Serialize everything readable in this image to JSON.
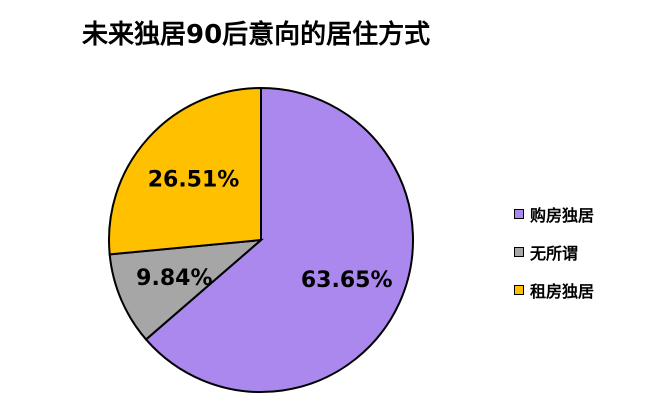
{
  "chart_data": {
    "type": "pie",
    "title": "未来独居90后意向的居住方式",
    "categories": [
      "购房独居",
      "无所谓",
      "租房独居"
    ],
    "values": [
      63.65,
      9.84,
      26.51
    ],
    "labels": [
      "63.65%",
      "9.84%",
      "26.51%"
    ],
    "colors": [
      "#AA88EE",
      "#A6A6A6",
      "#FFC000"
    ],
    "legend_position": "right"
  }
}
